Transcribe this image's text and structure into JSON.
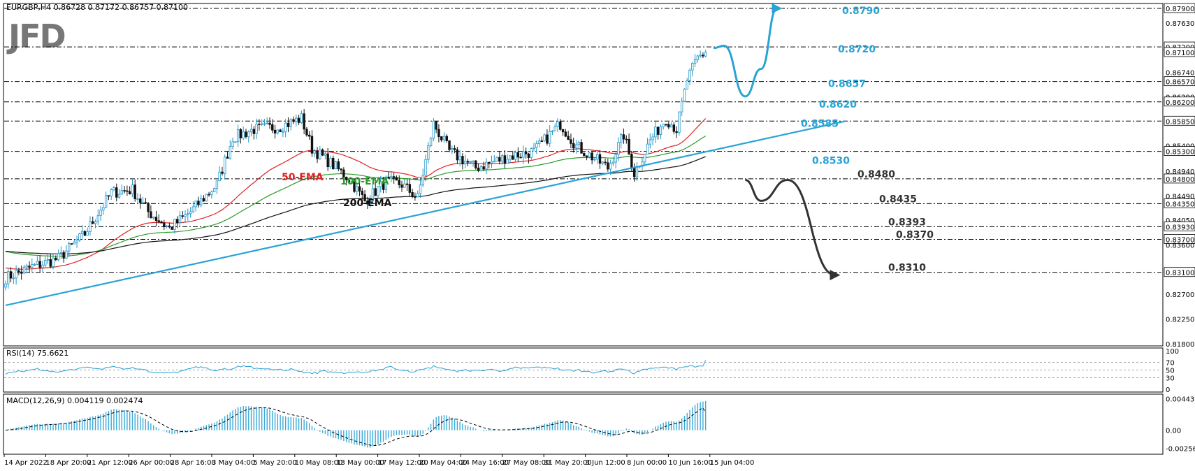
{
  "header": {
    "symbol_info": "EURGBP,H4  0.86728 0.87172 0.86757 0.87100",
    "logo": "JFD"
  },
  "colors": {
    "bull": "#2196c9",
    "bear": "#111111",
    "ema50": "#e02020",
    "ema100": "#2a9a2a",
    "ema200": "#111111",
    "trend": "#29a3d6",
    "scenario_up": "#29a3d6",
    "scenario_down": "#333333",
    "macd_hist": "#3aaad8"
  },
  "chart_data": [
    {
      "type": "candlestick",
      "symbol": "EURGBP",
      "timeframe": "H4",
      "ylim": [
        0.818,
        0.879
      ],
      "x_ticks": [
        "14 Apr 2022",
        "18 Apr 20:00",
        "21 Apr 12:00",
        "26 Apr 00:00",
        "28 Apr 16:00",
        "3 May 04:00",
        "5 May 20:00",
        "10 May 08:00",
        "13 May 00:00",
        "17 May 12:00",
        "20 May 04:00",
        "24 May 16:00",
        "27 May 08:00",
        "31 May 20:00",
        "3 Jun 12:00",
        "8 Jun 00:00",
        "10 Jun 16:00",
        "15 Jun 04:00"
      ],
      "y_ticks": [
        "0.87900",
        "0.87630",
        "0.87200",
        "0.87100",
        "0.86740",
        "0.86570",
        "0.86290",
        "0.86200",
        "0.85850",
        "0.85400",
        "0.85300",
        "0.84940",
        "0.84800",
        "0.84490",
        "0.84350",
        "0.84050",
        "0.83930",
        "0.83700",
        "0.83600",
        "0.83100",
        "0.82700",
        "0.82250",
        "0.81800"
      ],
      "anchors": [
        {
          "x": 0,
          "y": 0.83
        },
        {
          "x": 10,
          "y": 0.832
        },
        {
          "x": 20,
          "y": 0.8335
        },
        {
          "x": 30,
          "y": 0.838
        },
        {
          "x": 40,
          "y": 0.8455
        },
        {
          "x": 48,
          "y": 0.846
        },
        {
          "x": 54,
          "y": 0.842
        },
        {
          "x": 62,
          "y": 0.839
        },
        {
          "x": 70,
          "y": 0.842
        },
        {
          "x": 80,
          "y": 0.847
        },
        {
          "x": 86,
          "y": 0.8555
        },
        {
          "x": 94,
          "y": 0.857
        },
        {
          "x": 104,
          "y": 0.8575
        },
        {
          "x": 112,
          "y": 0.859
        },
        {
          "x": 116,
          "y": 0.8535
        },
        {
          "x": 124,
          "y": 0.8505
        },
        {
          "x": 130,
          "y": 0.848
        },
        {
          "x": 136,
          "y": 0.844
        },
        {
          "x": 144,
          "y": 0.8475
        },
        {
          "x": 150,
          "y": 0.847
        },
        {
          "x": 156,
          "y": 0.8445
        },
        {
          "x": 162,
          "y": 0.858
        },
        {
          "x": 168,
          "y": 0.853
        },
        {
          "x": 178,
          "y": 0.85
        },
        {
          "x": 190,
          "y": 0.852
        },
        {
          "x": 200,
          "y": 0.853
        },
        {
          "x": 210,
          "y": 0.858
        },
        {
          "x": 216,
          "y": 0.854
        },
        {
          "x": 222,
          "y": 0.852
        },
        {
          "x": 228,
          "y": 0.85
        },
        {
          "x": 234,
          "y": 0.856
        },
        {
          "x": 238,
          "y": 0.849
        },
        {
          "x": 244,
          "y": 0.855
        },
        {
          "x": 250,
          "y": 0.859
        },
        {
          "x": 254,
          "y": 0.857
        },
        {
          "x": 258,
          "y": 0.866
        },
        {
          "x": 262,
          "y": 0.87
        },
        {
          "x": 265,
          "y": 0.871
        }
      ],
      "levels_right": [
        "0.8790",
        "0.8720",
        "0.8657",
        "0.8620",
        "0.8585",
        "0.8530",
        "0.8480",
        "0.8435",
        "0.8393",
        "0.8370",
        "0.8310"
      ],
      "level_values": [
        0.879,
        0.872,
        0.8657,
        0.862,
        0.8585,
        0.853,
        0.848,
        0.8435,
        0.8393,
        0.837,
        0.831
      ],
      "ema_labels": {
        "ema50": "50-EMA",
        "ema100": "100-EMA",
        "ema200": "200-EMA"
      },
      "trendline": {
        "x1": 0,
        "y1": 0.825,
        "x2": 318,
        "y2": 0.8585
      },
      "scenario_up": [
        {
          "x": 268,
          "y": 0.8718
        },
        {
          "x": 272,
          "y": 0.8722
        },
        {
          "x": 280,
          "y": 0.863
        },
        {
          "x": 286,
          "y": 0.868
        },
        {
          "x": 292,
          "y": 0.879
        }
      ],
      "scenario_down": [
        {
          "x": 280,
          "y": 0.8478
        },
        {
          "x": 286,
          "y": 0.844
        },
        {
          "x": 296,
          "y": 0.8478
        },
        {
          "x": 314,
          "y": 0.8305
        }
      ]
    },
    {
      "type": "line",
      "indicator": "RSI",
      "label": "RSI(14) 75.6621",
      "ylim": [
        0,
        100
      ],
      "y_ticks": [
        "100",
        "70",
        "50",
        "30",
        "0"
      ],
      "levels": [
        70,
        50,
        30
      ],
      "current": 75.6621
    },
    {
      "type": "bar",
      "indicator": "MACD",
      "label": "MACD(12,26,9) 0.004119 0.002474",
      "ylim": [
        -0.003,
        0.0047
      ],
      "y_ticks": [
        "0.004437",
        "0.00",
        "-0.002562"
      ],
      "macd_last": 0.004119,
      "signal_last": 0.002474
    }
  ]
}
